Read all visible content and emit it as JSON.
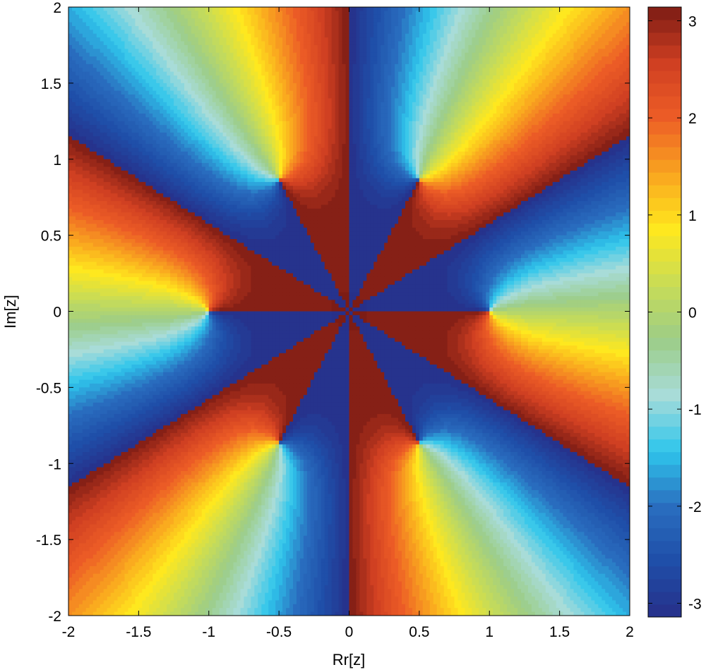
{
  "chart_data": {
    "type": "heatmap",
    "title": "",
    "xlabel": "Rr[z]",
    "ylabel": "Im[z]",
    "xlim": [
      -2,
      2
    ],
    "ylim": [
      -2,
      2
    ],
    "x_ticks": [
      -2,
      -1.5,
      -1,
      -0.5,
      0,
      0.5,
      1,
      1.5,
      2
    ],
    "x_tick_labels": [
      "-2",
      "-1.5",
      "-1",
      "-0.5",
      "0",
      "0.5",
      "1",
      "1.5",
      "2"
    ],
    "y_ticks": [
      2,
      1.5,
      1,
      0.5,
      0,
      -0.5,
      -1,
      -1.5,
      -2
    ],
    "y_tick_labels": [
      "2",
      "1.5",
      "1",
      "0.5",
      "0",
      "-0.5",
      "-1",
      "-1.5",
      "-2"
    ],
    "colorbar": {
      "range": [
        -3.14159,
        3.14159
      ],
      "ticks": [
        3,
        2,
        1,
        0,
        -1,
        -2,
        -3
      ],
      "tick_labels": [
        "3",
        "2",
        "1",
        "0",
        "-1",
        "-2",
        "-3"
      ],
      "levels": 48,
      "colormap": [
        "#27308a",
        "#1f4ea8",
        "#2a6ebf",
        "#2fc6ec",
        "#a8dcd9",
        "#9ccd88",
        "#c8dc56",
        "#ffe81e",
        "#f9a51f",
        "#ed5d26",
        "#cf3f22",
        "#7d1c14"
      ]
    },
    "field": {
      "description_values": "phase angle arg(f(z)) shown as filled contours",
      "zeros": [
        [
          1,
          0
        ],
        [
          0.5,
          0.866
        ],
        [
          -0.5,
          0.866
        ],
        [
          -1,
          0
        ],
        [
          -0.5,
          -0.866
        ],
        [
          0.5,
          -0.866
        ]
      ],
      "branch_directions_deg": [
        0,
        60,
        120,
        180,
        240,
        300
      ]
    },
    "grid": false,
    "legend": "colorbar-right"
  }
}
